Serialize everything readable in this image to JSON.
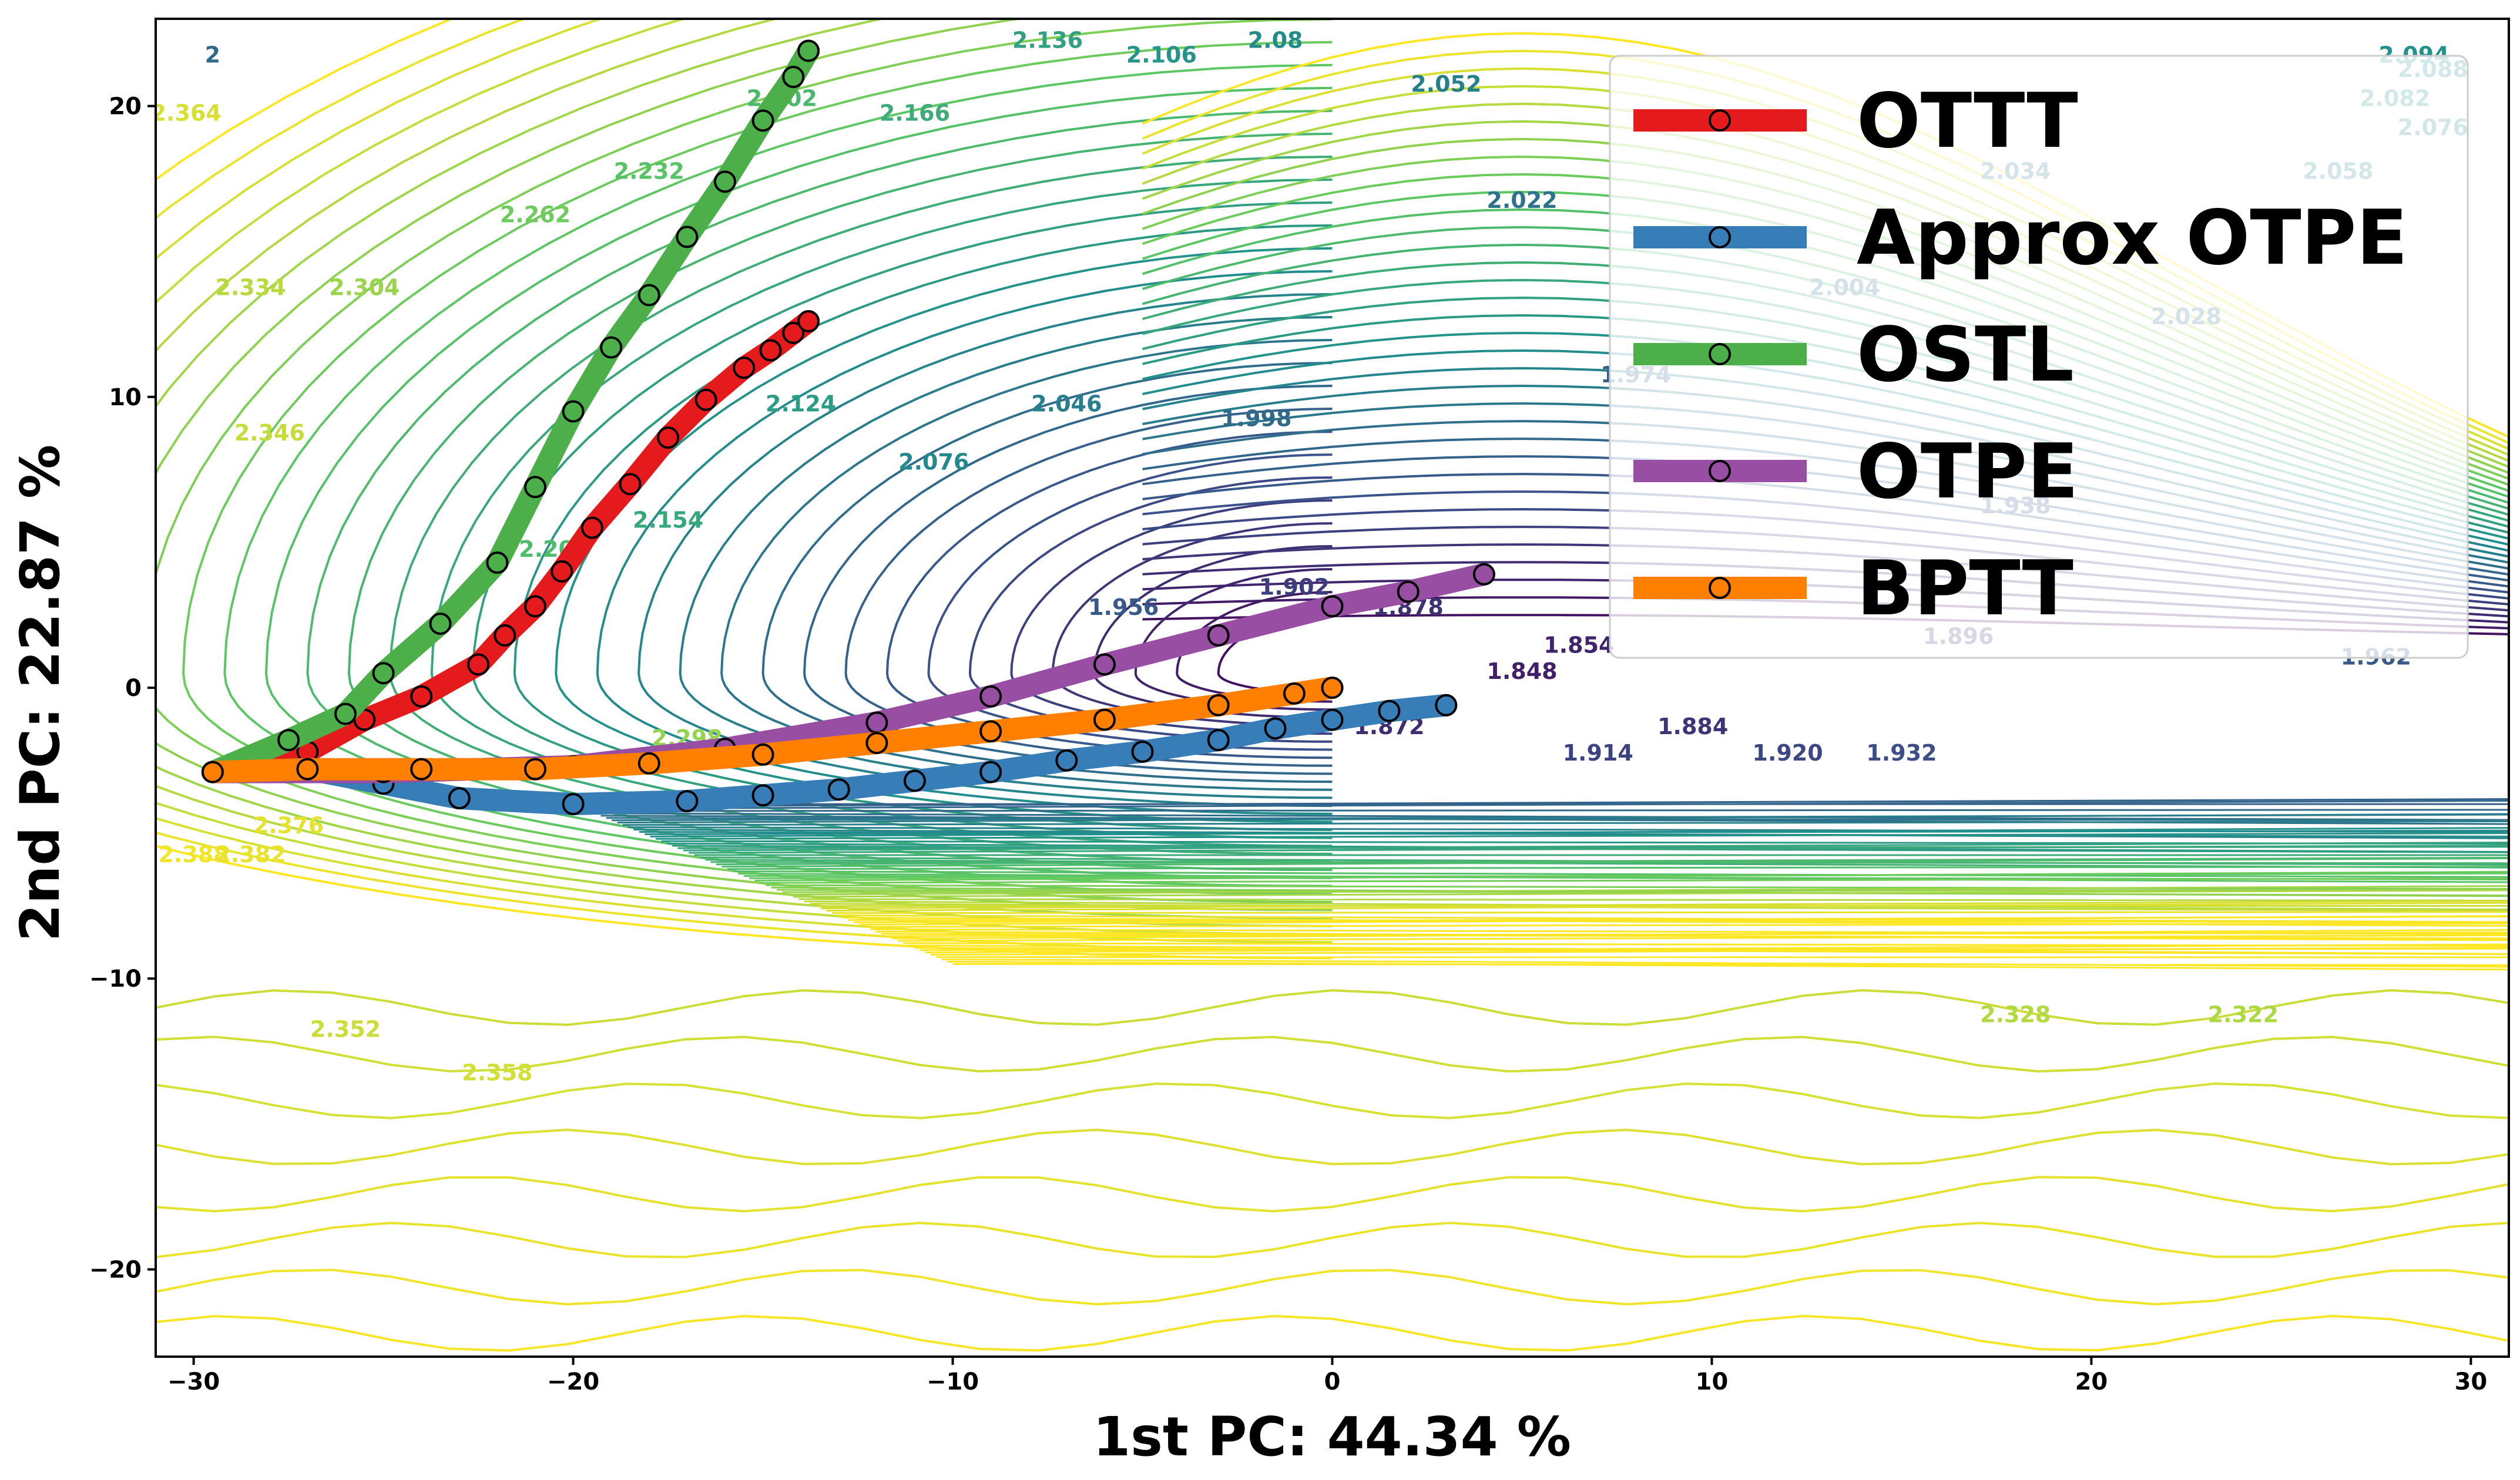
{
  "chart_data": {
    "type": "line",
    "title": "",
    "xlabel": "1st PC: 44.34 %",
    "ylabel": "2nd PC: 22.87 %",
    "xlim": [
      -31,
      31
    ],
    "ylim": [
      -23,
      23
    ],
    "x_ticks": [
      -30,
      -20,
      -10,
      0,
      10,
      20,
      30
    ],
    "y_ticks": [
      -20,
      -10,
      0,
      10,
      20
    ],
    "x_tick_labels": [
      "−30",
      "−20",
      "−10",
      "0",
      "10",
      "20",
      "30"
    ],
    "y_tick_labels": [
      "−20",
      "−10",
      "0",
      "10",
      "20"
    ],
    "grid": false,
    "legend_position": "top-right",
    "colors": {
      "OTTT": "#e41a1c",
      "Approx OTPE": "#377eb8",
      "OSTL": "#4daf4a",
      "OTPE": "#984ea3",
      "BPTT": "#ff7f00"
    },
    "series": [
      {
        "name": "OTTT",
        "x": [
          -29.5,
          -27,
          -25.5,
          -24,
          -22.5,
          -21.8,
          -21,
          -20.3,
          -19.5,
          -18.5,
          -17.5,
          -16.5,
          -15.5,
          -14.8,
          -14.2,
          -13.8
        ],
        "y": [
          -2.9,
          -2.2,
          -1.1,
          -0.3,
          0.8,
          1.8,
          2.8,
          4.0,
          5.5,
          7.0,
          8.6,
          9.9,
          11.0,
          11.6,
          12.2,
          12.6
        ]
      },
      {
        "name": "Approx OTPE",
        "x": [
          -29.5,
          -27,
          -25,
          -23,
          -20,
          -17,
          -15,
          -13,
          -11,
          -9,
          -7,
          -5,
          -3,
          -1.5,
          0,
          1.5,
          3
        ],
        "y": [
          -2.9,
          -2.8,
          -3.3,
          -3.8,
          -4.0,
          -3.9,
          -3.7,
          -3.5,
          -3.2,
          -2.9,
          -2.5,
          -2.2,
          -1.8,
          -1.4,
          -1.1,
          -0.8,
          -0.6
        ]
      },
      {
        "name": "OSTL",
        "x": [
          -29.5,
          -27.5,
          -26,
          -25,
          -23.5,
          -22,
          -21,
          -20,
          -19,
          -18,
          -17,
          -16,
          -15,
          -14.2,
          -13.8
        ],
        "y": [
          -2.9,
          -1.8,
          -0.9,
          0.5,
          2.2,
          4.3,
          6.9,
          9.5,
          11.7,
          13.5,
          15.5,
          17.4,
          19.5,
          21.0,
          21.9
        ]
      },
      {
        "name": "OTPE",
        "x": [
          -29.5,
          -25,
          -20,
          -16,
          -12,
          -9,
          -6,
          -3,
          0,
          2,
          4
        ],
        "y": [
          -2.9,
          -2.9,
          -2.7,
          -2.1,
          -1.2,
          -0.3,
          0.8,
          1.8,
          2.8,
          3.3,
          3.9
        ]
      },
      {
        "name": "BPTT",
        "x": [
          -29.5,
          -27,
          -24,
          -21,
          -18,
          -15,
          -12,
          -9,
          -6,
          -3,
          -1,
          0
        ],
        "y": [
          -2.9,
          -2.8,
          -2.8,
          -2.8,
          -2.6,
          -2.3,
          -1.9,
          -1.5,
          -1.1,
          -0.6,
          -0.2,
          0.0
        ]
      }
    ],
    "contour_labels": [
      "2.364",
      "2",
      "2.334",
      "2.346",
      "2.304",
      "2.262",
      "2.232",
      "2.202",
      "2.166",
      "2.136",
      "2.106",
      "2.08",
      "2.052",
      "2.022",
      "2.046",
      "2.076",
      "2.124",
      "2.154",
      "1.998",
      "1.974",
      "1.956",
      "1.902",
      "1.878",
      "1.854",
      "1.848",
      "1.872",
      "1.884",
      "1.914",
      "1.920",
      "1.932",
      "2.388",
      "2.382",
      "2.376",
      "2.352",
      "2.358",
      "2.328",
      "2.322",
      "2.004",
      "2.028",
      "2.034",
      "2.058",
      "2.076",
      "2.082",
      "2.088",
      "2.094",
      "1.962",
      "1.896",
      "1.938",
      "2.298",
      "2.208"
    ]
  }
}
